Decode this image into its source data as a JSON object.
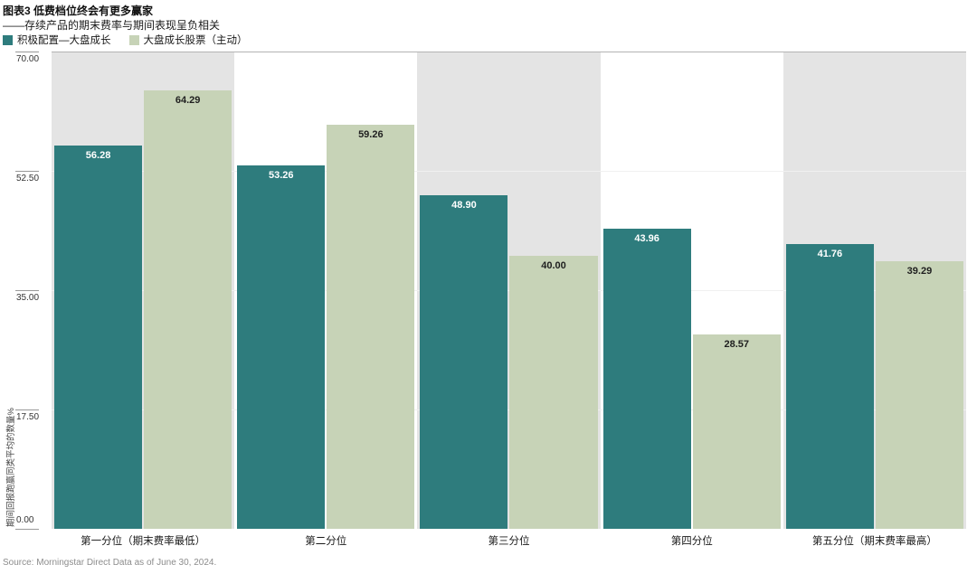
{
  "title": "图表3 低费档位终会有更多赢家",
  "subtitle": "——存续产品的期末费率与期间表现呈负相关",
  "legend": [
    {
      "label": "积极配置—大盘成长",
      "color": "#2e7c7d"
    },
    {
      "label": "大盘成长股票（主动）",
      "color": "#c7d3b7"
    }
  ],
  "source": "Source: Morningstar Direct  Data as of June 30, 2024.",
  "chart_data": {
    "type": "bar",
    "title": "图表3 低费档位终会有更多赢家",
    "subtitle": "——存续产品的期末费率与期间表现呈负相关",
    "categories": [
      "第一分位（期末费率最低）",
      "第二分位",
      "第三分位",
      "第四分位",
      "第五分位（期末费率最高）"
    ],
    "series": [
      {
        "name": "积极配置—大盘成长",
        "color": "#2e7c7d",
        "label_color": "#ffffff",
        "values": [
          56.28,
          53.26,
          48.9,
          43.96,
          41.76
        ]
      },
      {
        "name": "大盘成长股票（主动）",
        "color": "#c7d3b7",
        "label_color": "#1f1f1f",
        "values": [
          64.29,
          59.26,
          40.0,
          28.57,
          39.29
        ]
      }
    ],
    "xlabel": "",
    "ylabel": "期间回报跑赢同类平均的数量%",
    "ylim": [
      0,
      70
    ],
    "yticks": [
      70.0,
      52.5,
      35.0,
      17.5,
      0.0
    ],
    "ytick_labels": [
      "70.00",
      "52.50",
      "35.00",
      "17.50",
      "0.00"
    ],
    "grid": true,
    "band_colors": [
      "#e4e4e4",
      "#ffffff"
    ],
    "gridline_color": "#f0f0f0",
    "top_border_color": "#b3b3b3",
    "legend_position": "top-left"
  }
}
